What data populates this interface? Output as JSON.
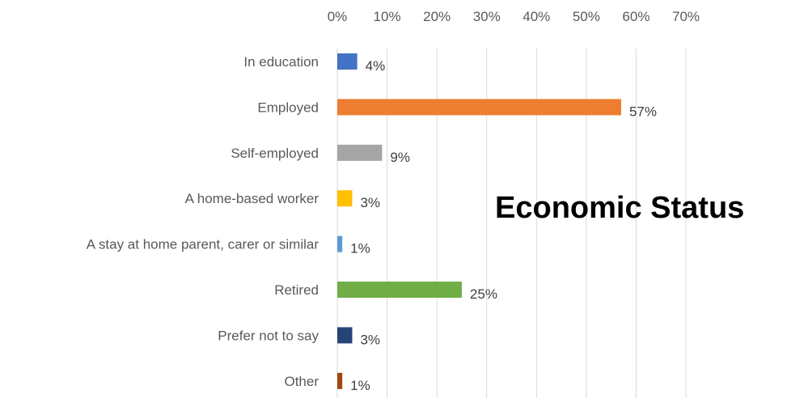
{
  "chart_data": {
    "type": "bar",
    "orientation": "horizontal",
    "title": "Economic Status",
    "categories": [
      "In education",
      "Employed",
      "Self-employed",
      "A home-based worker",
      "A stay at home parent, carer or similar",
      "Retired",
      "Prefer not to say",
      "Other"
    ],
    "values": [
      4,
      57,
      9,
      3,
      1,
      25,
      3,
      1
    ],
    "data_labels": [
      "4%",
      "57%",
      "9%",
      "3%",
      "1%",
      "25%",
      "3%",
      "1%"
    ],
    "colors": [
      "#4472C4",
      "#ED7D31",
      "#A5A5A5",
      "#FFC000",
      "#5B9BD5",
      "#70AD47",
      "#264478",
      "#9E480E"
    ],
    "xticks": [
      "0%",
      "10%",
      "20%",
      "30%",
      "40%",
      "50%",
      "60%",
      "70%"
    ],
    "xlim": [
      0,
      70
    ],
    "x_axis_position": "top",
    "grid": true,
    "legend": "none"
  }
}
